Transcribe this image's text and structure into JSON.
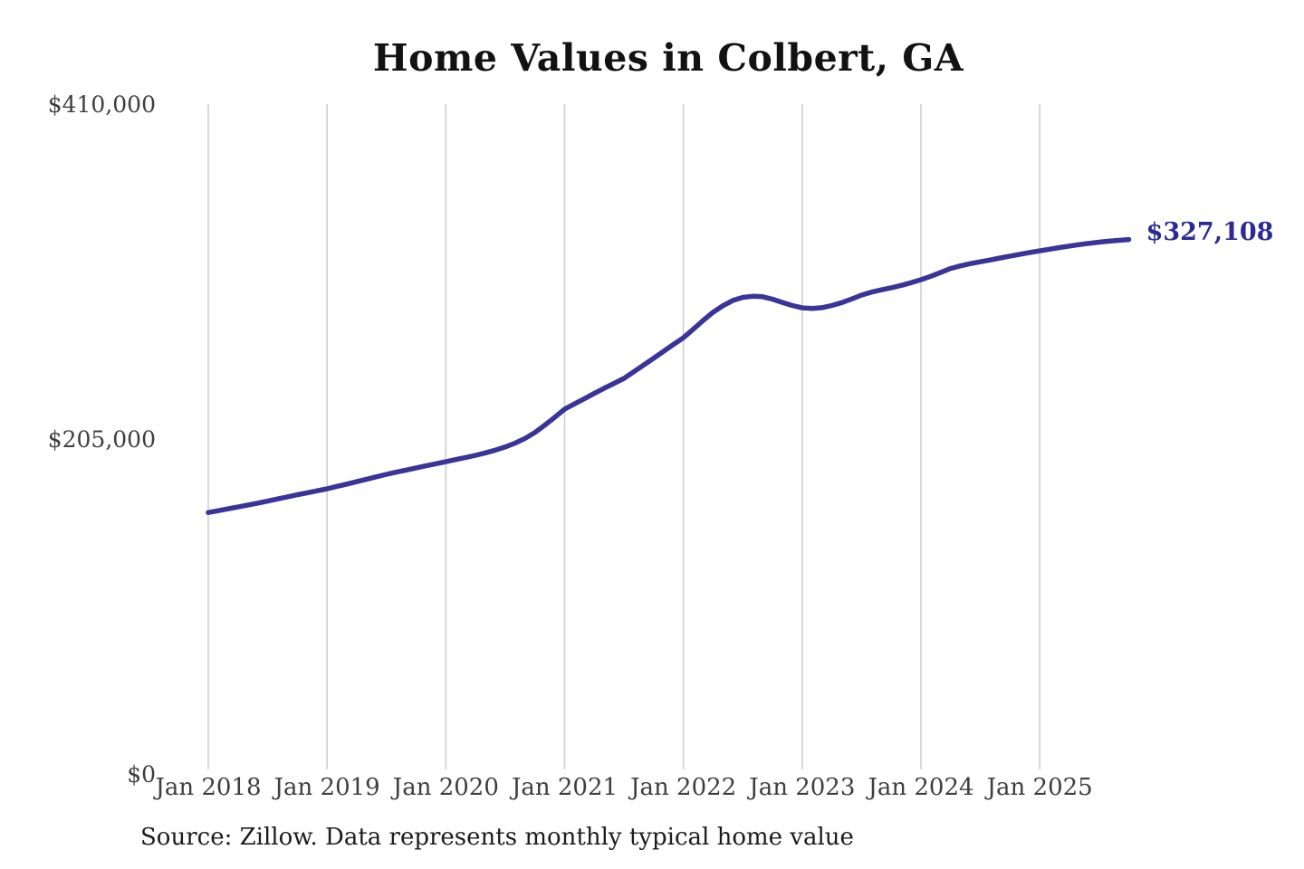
{
  "title": "Home Values in Colbert, GA",
  "source_note": "Source: Zillow. Data represents monthly typical home value",
  "end_label": "$327,108",
  "colors": {
    "background": "#ffffff",
    "line": "#3b3498",
    "end_label_text": "#2d2b91",
    "gridline": "#cccccc",
    "axis_text": "#3e3e3e",
    "title_text": "#121212",
    "source_text": "#1c1c1c"
  },
  "chart_data": {
    "type": "line",
    "title": "Home Values in Colbert, GA",
    "region": "Colbert, GA",
    "unit": "USD",
    "cadence": "monthly",
    "start_month": "2018-01",
    "end_month": "2025-10",
    "ylim": [
      0,
      410000
    ],
    "grid": "vertical-only",
    "legend": "none",
    "y_ticks": [
      {
        "value": 0,
        "label": "$0"
      },
      {
        "value": 205000,
        "label": "$205,000"
      },
      {
        "value": 410000,
        "label": "$410,000"
      }
    ],
    "x_ticks": [
      "Jan 2018",
      "Jan 2019",
      "Jan 2020",
      "Jan 2021",
      "Jan 2022",
      "Jan 2023",
      "Jan 2024",
      "Jan 2025"
    ],
    "months_per_x_tick": 12,
    "last_value": 327108,
    "last_value_label": "$327,108",
    "series": [
      {
        "name": "Typical home value",
        "values": [
          160000,
          161100,
          162300,
          163400,
          164600,
          165800,
          167000,
          168300,
          169600,
          170900,
          172100,
          173300,
          174500,
          176000,
          177400,
          178900,
          180400,
          181900,
          183400,
          184700,
          186000,
          187300,
          188600,
          189900,
          191100,
          192400,
          193700,
          195000,
          196500,
          198200,
          200100,
          202500,
          205400,
          209000,
          213500,
          218300,
          223300,
          226500,
          229700,
          232900,
          236100,
          239100,
          242100,
          246200,
          250400,
          254500,
          258700,
          262900,
          267000,
          272200,
          277600,
          282600,
          286600,
          289800,
          291700,
          292400,
          292100,
          290600,
          288600,
          286700,
          285300,
          284900,
          285400,
          286700,
          288500,
          290700,
          293100,
          294900,
          296300,
          297600,
          299000,
          300700,
          302500,
          304600,
          307000,
          309400,
          311000,
          312400,
          313500,
          314600,
          315800,
          317000,
          318100,
          319200,
          320200,
          321200,
          322200,
          323100,
          324000,
          324800,
          325500,
          326100,
          326600,
          327108
        ]
      }
    ]
  }
}
